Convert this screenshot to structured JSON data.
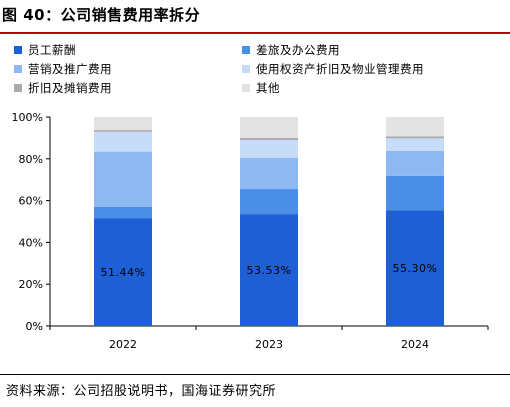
{
  "figure": {
    "title": "图 40：公司销售费用率拆分",
    "source": "资料来源：公司招股说明书，国海证券研究所"
  },
  "chart_data": {
    "type": "bar",
    "stacked": true,
    "normalized": true,
    "categories": [
      "2022",
      "2023",
      "2024"
    ],
    "ylim": [
      0,
      100
    ],
    "yticks": [
      "0%",
      "20%",
      "40%",
      "60%",
      "80%",
      "100%"
    ],
    "grid": false,
    "legend_position": "top",
    "series": [
      {
        "name": "员工薪酬",
        "color": "#1f5fd6",
        "values": [
          51.44,
          53.53,
          55.3
        ],
        "data_labels": [
          "51.44%",
          "53.53%",
          "55.30%"
        ]
      },
      {
        "name": "差旅及办公费用",
        "color": "#4a8ee8",
        "values": [
          5.5,
          12.0,
          16.5
        ]
      },
      {
        "name": "营销及推广费用",
        "color": "#8db8f1",
        "values": [
          26.5,
          15.0,
          12.0
        ]
      },
      {
        "name": "使用权资产折旧及物业管理费用",
        "color": "#c6dcf8",
        "values": [
          9.5,
          8.5,
          6.0
        ]
      },
      {
        "name": "折旧及摊销费用",
        "color": "#aaaaaa",
        "values": [
          0.8,
          1.0,
          0.9
        ]
      },
      {
        "name": "其他",
        "color": "#e3e3e3",
        "values": [
          6.26,
          9.97,
          9.3
        ]
      }
    ]
  }
}
